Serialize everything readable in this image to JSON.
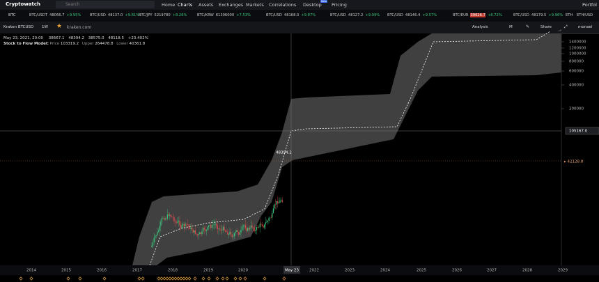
{
  "nav": {
    "brand": "Cryptowatch",
    "search": "Search",
    "links": [
      "Home",
      "Charts",
      "Assets",
      "Exchanges",
      "Markets",
      "Correlations",
      "Desktop",
      "Pricing"
    ],
    "badge": "Beta",
    "portfolio": "Portfol"
  },
  "ticker": {
    "lead": "BTC",
    "items": [
      {
        "pair": "BTC/USDT",
        "price": "48066.7",
        "change": "+9.95%"
      },
      {
        "pair": "BTC/USD",
        "price": "48137.0",
        "change": "+9.81%"
      },
      {
        "pair": "BTC/JPY",
        "price": "5219780",
        "change": "+8.26%"
      },
      {
        "pair": "BTC/KRW",
        "price": "61306000",
        "change": "+7.53%"
      },
      {
        "pair": "BTC/USD",
        "price": "48168.0",
        "change": "+9.87%"
      },
      {
        "pair": "BTC/USD",
        "price": "48127.2",
        "change": "+9.99%"
      },
      {
        "pair": "BTC/USD",
        "price": "48146.4",
        "change": "+9.57%"
      },
      {
        "pair": "BTC/EUR",
        "price": "39626.7",
        "change": "+8.72%"
      },
      {
        "pair": "BTC/USD",
        "price": "48179.5",
        "change": "+9.96%"
      }
    ],
    "tail": [
      "ETH",
      "ETH/USD"
    ]
  },
  "toolbar": {
    "market": "Kraken BTCUSD",
    "period": "1W",
    "exchange": "kraken.com",
    "analysis": "Analysis",
    "mode": "M",
    "share": "Share",
    "user": "monael"
  },
  "legend": {
    "date": "May 23, 2021, 20:00",
    "open": "38667.1",
    "high": "48394.2",
    "low": "38575.0",
    "close": "48118.5",
    "change": "+23.402%",
    "model": "Stock to Flow Model:",
    "price_label": "Price",
    "price": "103319.2",
    "upper_label": "Upper",
    "upper": "264478.8",
    "lower_label": "Lower",
    "lower": "40361.8"
  },
  "chart": {
    "yaxis": [
      "1400000",
      "1200000",
      "1000000",
      "800000",
      "600000",
      "400000",
      "200000"
    ],
    "crosshair_price": "105167.0",
    "last_price": "42128.8",
    "high_marker": "48394.2",
    "xaxis": [
      "2014",
      "2015",
      "2016",
      "2017",
      "2018",
      "2019",
      "2020",
      "2022",
      "2023",
      "2024",
      "2025",
      "2026",
      "2027",
      "2028",
      "2029"
    ],
    "cursor_date": "May 23"
  }
}
